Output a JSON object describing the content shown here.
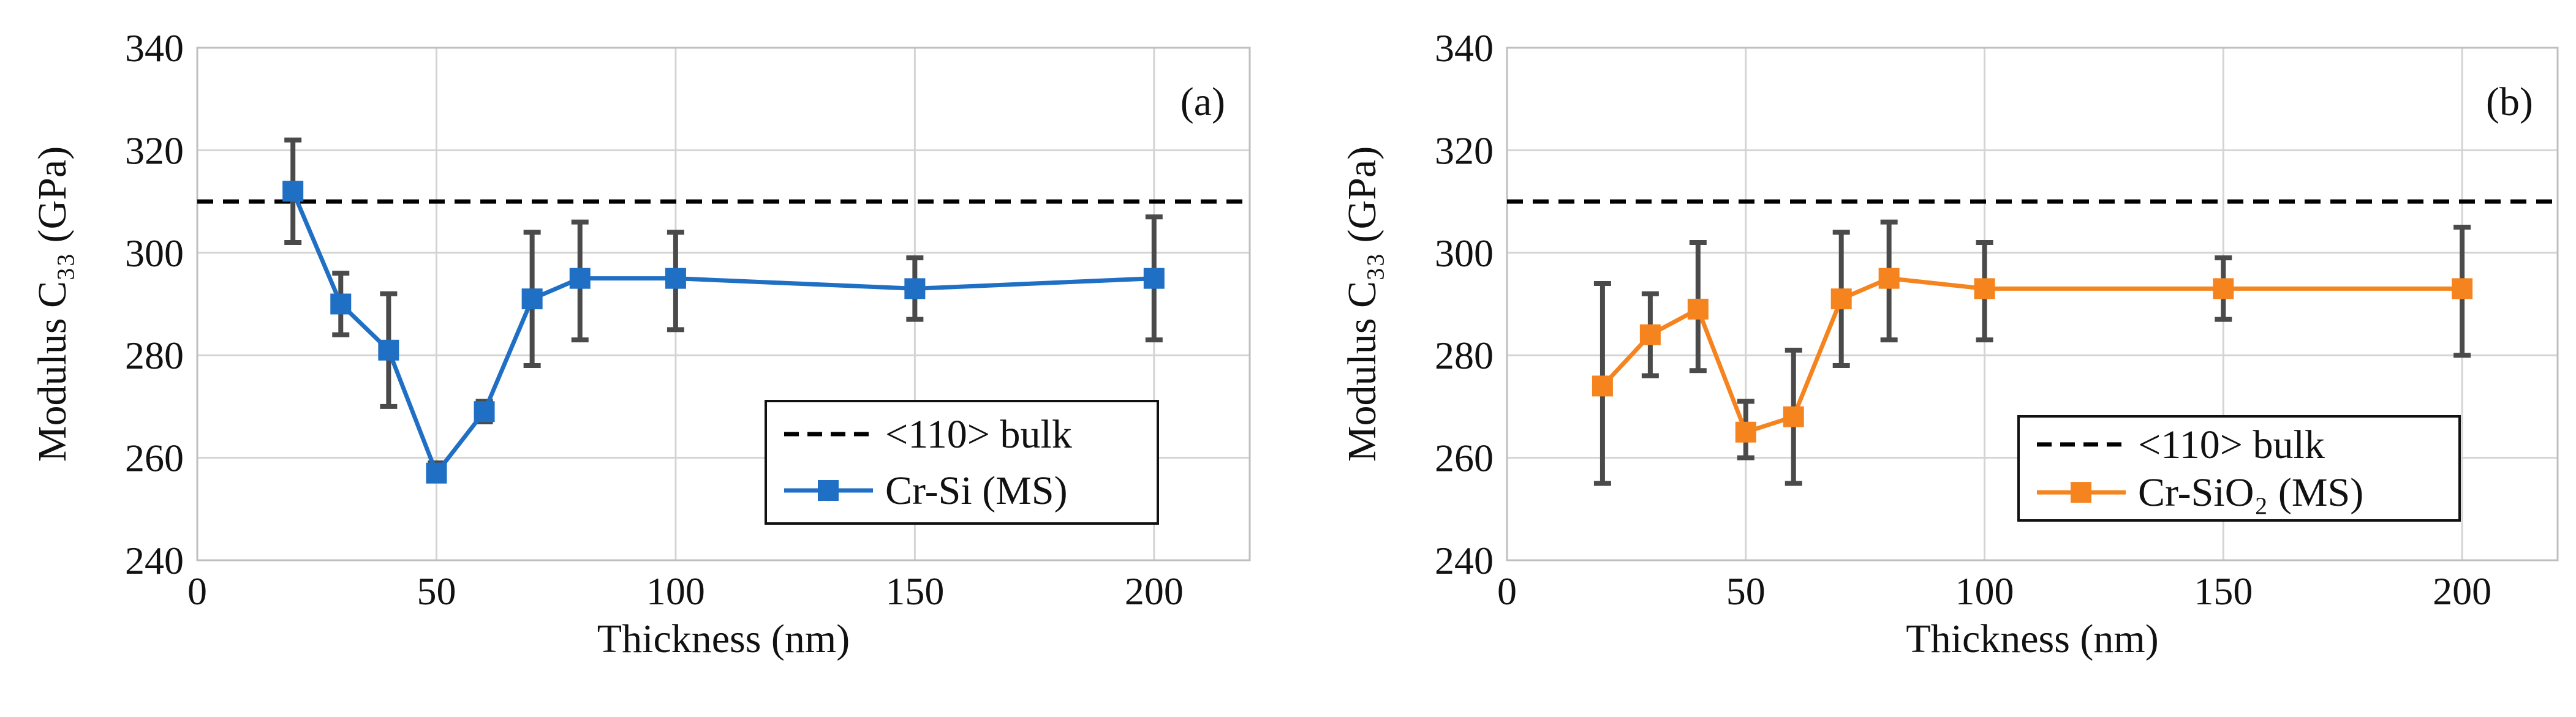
{
  "chart_data": [
    {
      "type": "line",
      "panel_label": "(a)",
      "xlabel": "Thickness (nm)",
      "ylabel": "Modulus C₃₃ (GPa)",
      "xlim": [
        0,
        220
      ],
      "ylim": [
        240,
        340
      ],
      "xticks": [
        "0",
        "50",
        "100",
        "150",
        "200"
      ],
      "yticks": [
        "240",
        "260",
        "280",
        "300",
        "320",
        "340"
      ],
      "grid": true,
      "legend_position": "bottom-right",
      "reference": {
        "name": "<110> bulk",
        "y": 310,
        "style": "dashed",
        "color": "#000000"
      },
      "series": [
        {
          "name": "Cr-Si (MS)",
          "color": "#1f6fc5",
          "marker": "square",
          "x": [
            20,
            30,
            40,
            50,
            60,
            70,
            80,
            100,
            150,
            200
          ],
          "y": [
            312,
            290,
            281,
            257,
            269,
            291,
            295,
            295,
            293,
            295
          ],
          "err_low": [
            302,
            284,
            270,
            256,
            267,
            278,
            283,
            285,
            287,
            283
          ],
          "err_high": [
            322,
            296,
            292,
            259,
            271,
            304,
            306,
            304,
            299,
            307
          ]
        }
      ]
    },
    {
      "type": "line",
      "panel_label": "(b)",
      "xlabel": "Thickness (nm)",
      "ylabel": "Modulus C₃₃ (GPa)",
      "xlim": [
        0,
        220
      ],
      "ylim": [
        240,
        340
      ],
      "xticks": [
        "0",
        "50",
        "100",
        "150",
        "200"
      ],
      "yticks": [
        "240",
        "260",
        "280",
        "300",
        "320",
        "340"
      ],
      "grid": true,
      "legend_position": "bottom-right",
      "reference": {
        "name": "<110> bulk",
        "y": 310,
        "style": "dashed",
        "color": "#000000"
      },
      "series": [
        {
          "name": "Cr-SiO₂  (MS)",
          "color": "#f5841f",
          "marker": "square",
          "x": [
            20,
            30,
            40,
            50,
            60,
            70,
            80,
            100,
            150,
            200
          ],
          "y": [
            274,
            284,
            289,
            265,
            268,
            291,
            295,
            293,
            293,
            293
          ],
          "err_low": [
            255,
            276,
            277,
            260,
            255,
            278,
            283,
            283,
            287,
            280
          ],
          "err_high": [
            294,
            292,
            302,
            271,
            281,
            304,
            306,
            302,
            299,
            305
          ]
        }
      ]
    }
  ]
}
